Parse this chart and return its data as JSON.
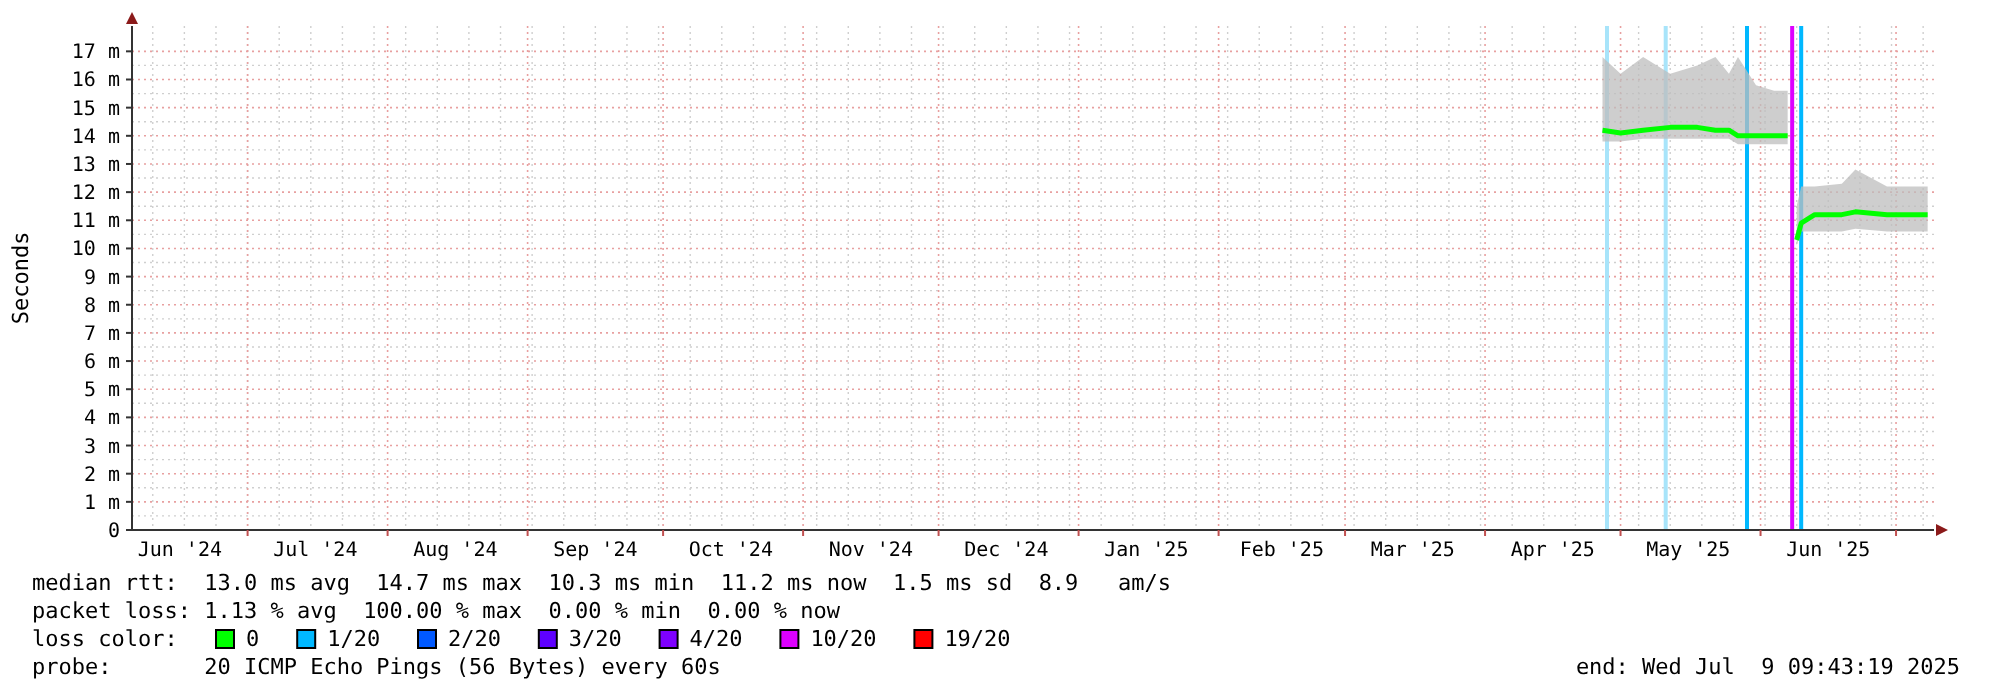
{
  "chart_data": {
    "type": "line",
    "ylabel": "Seconds",
    "xlim": [
      "2024-06-05T09:43",
      "2025-07-09T09:43"
    ],
    "xticks": [
      {
        "value": "2024-06-16",
        "label": "Jun '24"
      },
      {
        "value": "2024-07-16",
        "label": "Jul '24"
      },
      {
        "value": "2024-08-16",
        "label": "Aug '24"
      },
      {
        "value": "2024-09-16",
        "label": "Sep '24"
      },
      {
        "value": "2024-10-16",
        "label": "Oct '24"
      },
      {
        "value": "2024-11-16",
        "label": "Nov '24"
      },
      {
        "value": "2024-12-16",
        "label": "Dec '24"
      },
      {
        "value": "2025-01-16",
        "label": "Jan '25"
      },
      {
        "value": "2025-02-15",
        "label": "Feb '25"
      },
      {
        "value": "2025-03-16",
        "label": "Mar '25"
      },
      {
        "value": "2025-04-16",
        "label": "Apr '25"
      },
      {
        "value": "2025-05-16",
        "label": "May '25"
      },
      {
        "value": "2025-06-16",
        "label": "Jun '25"
      }
    ],
    "ylim": [
      0,
      17.9
    ],
    "yticks": [
      0,
      {
        "value": 1,
        "label": "1 m"
      },
      {
        "value": 2,
        "label": "2 m"
      },
      {
        "value": 3,
        "label": "3 m"
      },
      {
        "value": 4,
        "label": "4 m"
      },
      {
        "value": 5,
        "label": "5 m"
      },
      {
        "value": 6,
        "label": "6 m"
      },
      {
        "value": 7,
        "label": "7 m"
      },
      {
        "value": 8,
        "label": "8 m"
      },
      {
        "value": 9,
        "label": "9 m"
      },
      {
        "value": 10,
        "label": "10 m"
      },
      {
        "value": 11,
        "label": "11 m"
      },
      {
        "value": 12,
        "label": "12 m"
      },
      {
        "value": 13,
        "label": "13 m"
      },
      {
        "value": 14,
        "label": "14 m"
      },
      {
        "value": 15,
        "label": "15 m"
      },
      {
        "value": 16,
        "label": "16 m"
      },
      {
        "value": 17,
        "label": "17 m"
      }
    ],
    "grid": true,
    "legend": "bottom",
    "marker": "none",
    "line_style": "solid",
    "series": [
      {
        "name": "0",
        "color": "#00ff00",
        "x": [
          "2025-04-27",
          "2025-05-01",
          "2025-05-06",
          "2025-05-12",
          "2025-05-18",
          "2025-05-22",
          "2025-05-25",
          "2025-05-27",
          "2025-05-31",
          "2025-06-04",
          "2025-06-07",
          "2025-06-08",
          "2025-06-09",
          "2025-06-10",
          "2025-06-13",
          "2025-06-19",
          "2025-06-22",
          "2025-06-29",
          "2025-07-03",
          "2025-07-08"
        ],
        "values": [
          14.2,
          14.1,
          14.2,
          14.3,
          14.3,
          14.2,
          14.2,
          14.0,
          14.0,
          14.0,
          14.0,
          null,
          10.3,
          10.9,
          11.2,
          11.2,
          11.3,
          11.2,
          11.2,
          11.2
        ],
        "lower": [
          13.8,
          13.8,
          13.9,
          13.9,
          13.9,
          13.9,
          13.9,
          13.7,
          13.7,
          13.7,
          13.7,
          null,
          10.1,
          10.6,
          10.6,
          10.6,
          10.7,
          10.6,
          10.6,
          10.6
        ],
        "upper": [
          16.8,
          16.2,
          16.8,
          16.2,
          16.5,
          16.8,
          16.2,
          16.8,
          15.8,
          15.6,
          15.6,
          null,
          11.5,
          12.2,
          12.2,
          12.3,
          12.8,
          12.2,
          12.2,
          12.2
        ]
      },
      {
        "name": "1/20",
        "color": "#00b8ff"
      },
      {
        "name": "2/20",
        "color": "#0059ff"
      },
      {
        "name": "3/20",
        "color": "#5e00ff"
      },
      {
        "name": "4/20",
        "color": "#7e00ff"
      },
      {
        "name": "10/20",
        "color": "#dd00ff"
      },
      {
        "name": "19/20",
        "color": "#ff0000"
      }
    ],
    "ref_lines": [
      {
        "axis": "x",
        "value": "2025-04-28",
        "color": "#a8e4fa"
      },
      {
        "axis": "x",
        "value": "2025-05-11",
        "color": "#a8e4fa"
      },
      {
        "axis": "x",
        "value": "2025-05-29",
        "color": "#00b8ff"
      },
      {
        "axis": "x",
        "value": "2025-06-08",
        "color": "#dd00ff"
      },
      {
        "axis": "x",
        "value": "2025-06-10",
        "color": "#00b8ff"
      }
    ],
    "annotations": [
      "median rtt:  13.0 ms avg  14.7 ms max  10.3 ms min  11.2 ms now  1.5 ms sd  8.9   am/s",
      "packet loss: 1.13 % avg  100.00 % max  0.00 % min  0.00 % now",
      "loss color:",
      "probe:       20 ICMP Echo Pings (56 Bytes) every 60s",
      "end: Wed Jul  9 09:43:19 2025"
    ]
  }
}
